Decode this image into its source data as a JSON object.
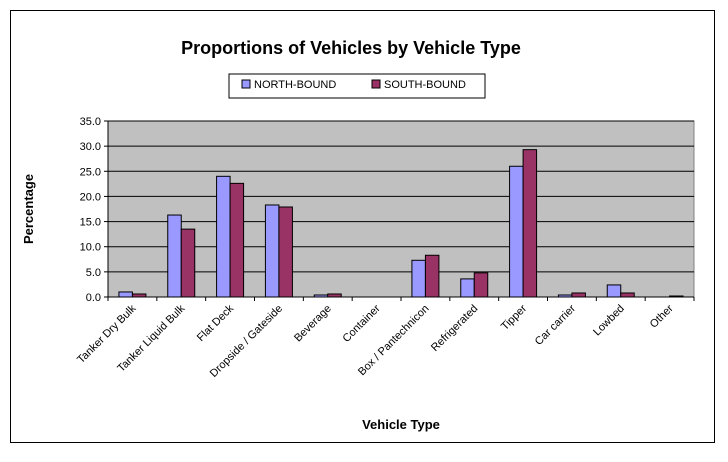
{
  "chart_data": {
    "type": "bar",
    "title": "Proportions of Vehicles by Vehicle Type",
    "xlabel": "Vehicle Type",
    "ylabel": "Percentage",
    "ylim": [
      0,
      35
    ],
    "yticks": [
      "0.0",
      "5.0",
      "10.0",
      "15.0",
      "20.0",
      "25.0",
      "30.0",
      "35.0"
    ],
    "categories": [
      "Tanker Dry Bulk",
      "Tanker Liquid Bulk",
      "Flat Deck",
      "Dropside / Gateside",
      "Beverage",
      "Container",
      "Box / Pantechnicon",
      "Refrigerated",
      "Tipper",
      "Car carrier",
      "Lowbed",
      "Other"
    ],
    "series": [
      {
        "name": "NORTH-BOUND",
        "color": "#9999ff",
        "values": [
          1.0,
          16.3,
          24.0,
          18.3,
          0.4,
          0.0,
          7.3,
          3.6,
          26.0,
          0.4,
          2.4,
          0.0
        ]
      },
      {
        "name": "SOUTH-BOUND",
        "color": "#993366",
        "values": [
          0.6,
          13.5,
          22.6,
          17.9,
          0.6,
          0.0,
          8.3,
          4.8,
          29.3,
          0.8,
          0.8,
          0.2
        ]
      }
    ],
    "grid": true,
    "plot_background": "#c0c0c0",
    "legend_position": "top-center"
  }
}
